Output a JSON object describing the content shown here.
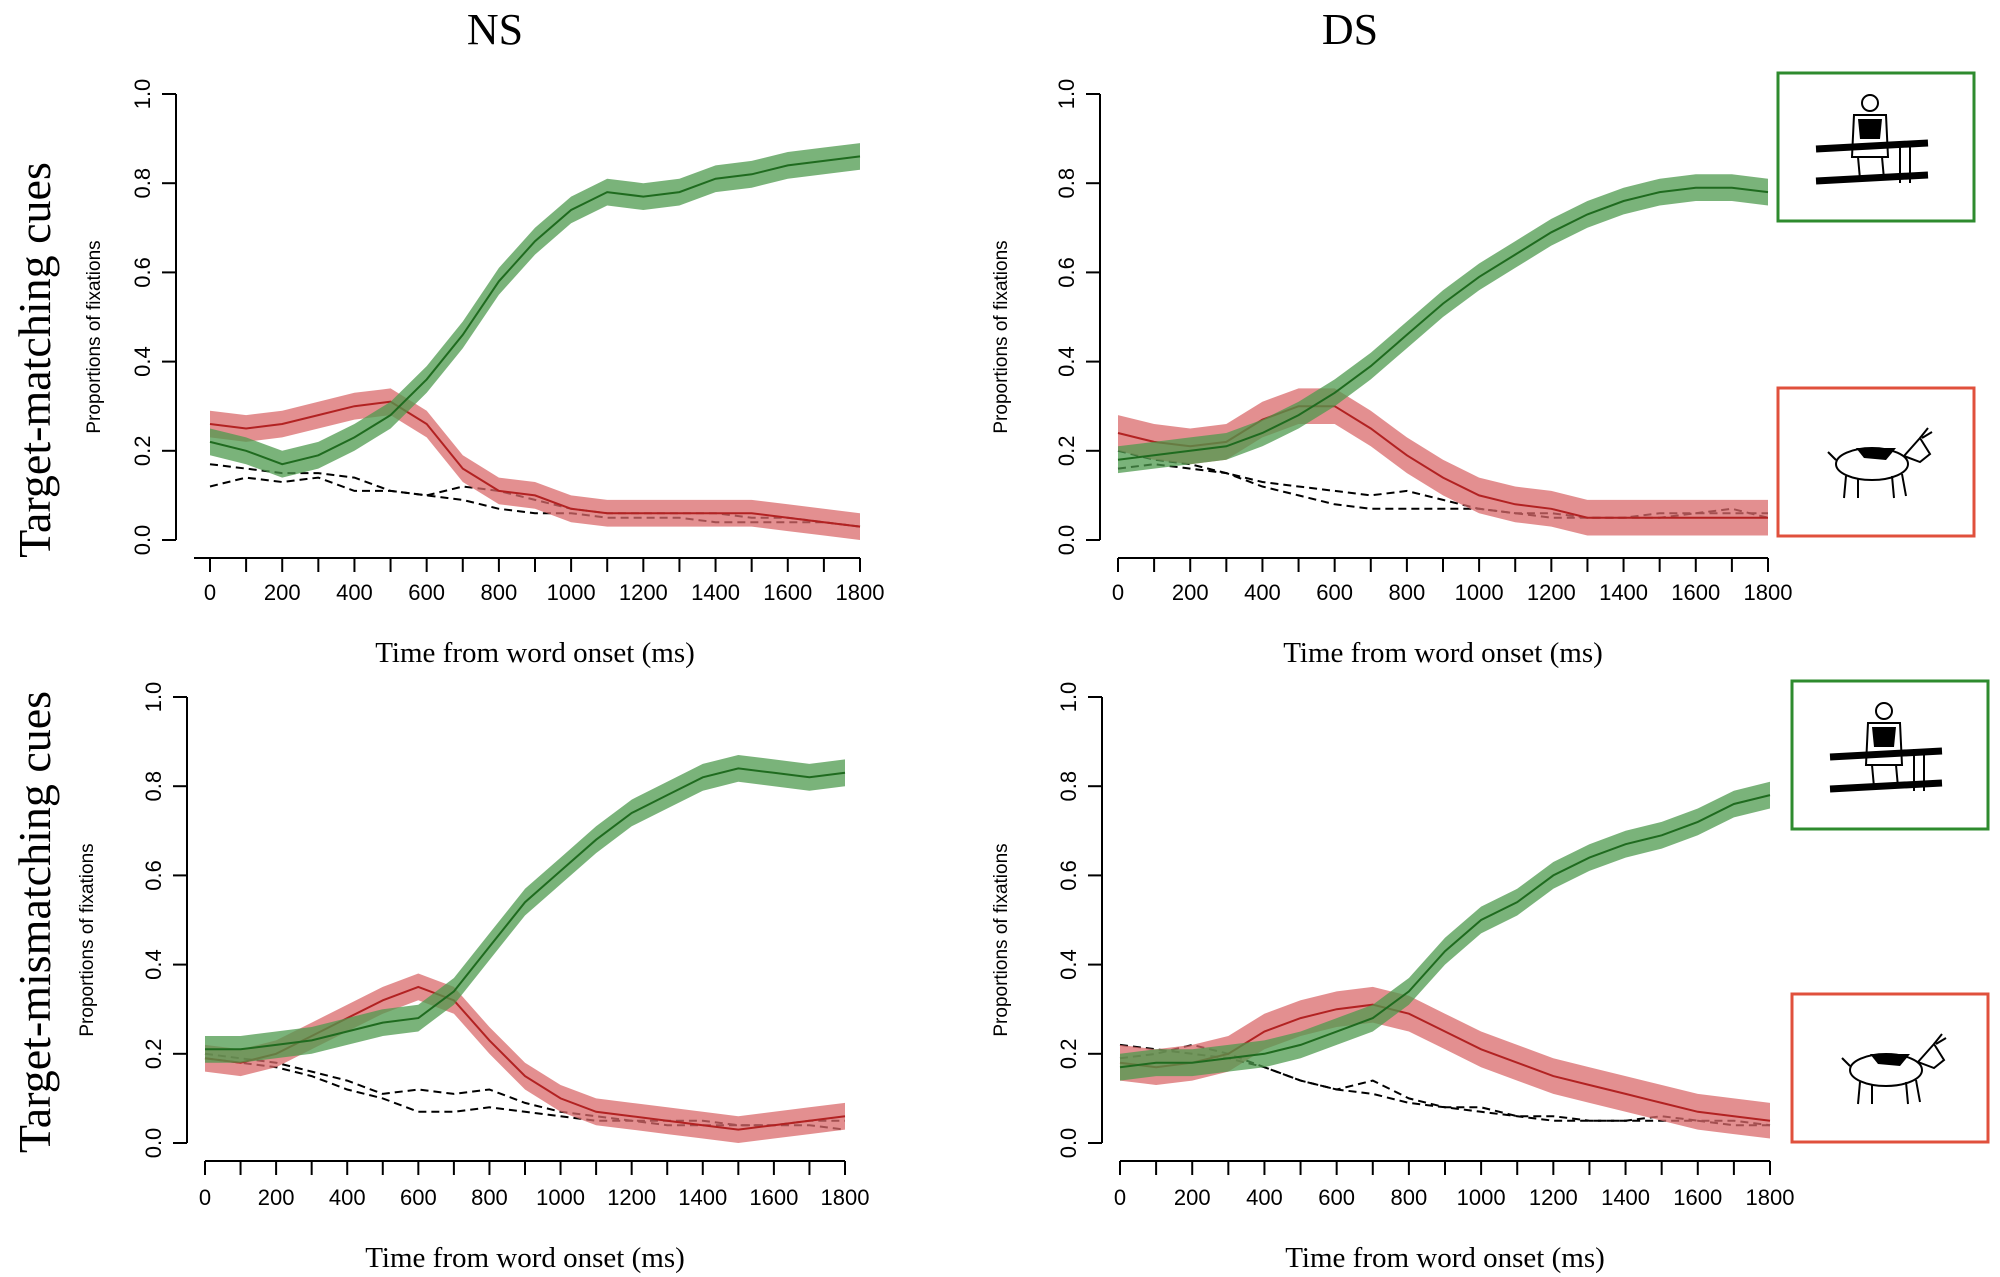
{
  "figure": {
    "col_titles": [
      "NS",
      "DS"
    ],
    "row_titles": [
      "Target-matching cues",
      "Target-mismatching cues"
    ]
  },
  "colors": {
    "target_line": "#1f6b1f",
    "target_band": "#4e9a4e",
    "competitor_line": "#b22222",
    "competitor_band": "#d9696b",
    "distractor_line": "#000000",
    "target_frame": "#2e8b2e",
    "competitor_frame": "#e0503c"
  },
  "legend_images": {
    "target": {
      "label": "target-picture",
      "icon": "woman-at-bars-icon"
    },
    "competitor": {
      "label": "competitor-picture",
      "icon": "goat-icon"
    }
  },
  "chart_data": [
    {
      "type": "line",
      "panel": "NS / Target-matching cues",
      "xlabel": "Time from word onset (ms)",
      "ylabel": "Proportions of fixations",
      "xlim": [
        0,
        1800
      ],
      "ylim": [
        0,
        1
      ],
      "x_ticks": [
        0,
        200,
        400,
        600,
        800,
        1000,
        1200,
        1400,
        1600,
        1800
      ],
      "y_ticks": [
        "0.0",
        "0.2",
        "0.4",
        "0.6",
        "0.8",
        "1.0"
      ],
      "x": [
        0,
        100,
        200,
        300,
        400,
        500,
        600,
        700,
        800,
        900,
        1000,
        1100,
        1200,
        1300,
        1400,
        1500,
        1600,
        1700,
        1800
      ],
      "series": [
        {
          "name": "target",
          "style": "band",
          "ci": 0.03,
          "values": [
            0.22,
            0.2,
            0.17,
            0.19,
            0.23,
            0.28,
            0.36,
            0.46,
            0.58,
            0.67,
            0.74,
            0.78,
            0.77,
            0.78,
            0.81,
            0.82,
            0.84,
            0.85,
            0.86
          ]
        },
        {
          "name": "competitor",
          "style": "band",
          "ci": 0.03,
          "values": [
            0.26,
            0.25,
            0.26,
            0.28,
            0.3,
            0.31,
            0.26,
            0.16,
            0.11,
            0.1,
            0.07,
            0.06,
            0.06,
            0.06,
            0.06,
            0.06,
            0.05,
            0.04,
            0.03
          ]
        },
        {
          "name": "distractor-1",
          "style": "dashed",
          "values": [
            0.17,
            0.16,
            0.15,
            0.15,
            0.14,
            0.11,
            0.1,
            0.09,
            0.07,
            0.06,
            0.06,
            0.05,
            0.05,
            0.05,
            0.04,
            0.04,
            0.04,
            0.04,
            0.03
          ]
        },
        {
          "name": "distractor-2",
          "style": "dashed",
          "values": [
            0.12,
            0.14,
            0.13,
            0.14,
            0.11,
            0.11,
            0.1,
            0.12,
            0.11,
            0.09,
            0.07,
            0.06,
            0.06,
            0.06,
            0.06,
            0.05,
            0.05,
            0.04,
            0.03
          ]
        }
      ]
    },
    {
      "type": "line",
      "panel": "DS / Target-matching cues",
      "xlabel": "Time from word onset (ms)",
      "ylabel": "Proportions of fixations",
      "xlim": [
        0,
        1800
      ],
      "ylim": [
        0,
        1
      ],
      "x_ticks": [
        0,
        200,
        400,
        600,
        800,
        1000,
        1200,
        1400,
        1600,
        1800
      ],
      "y_ticks": [
        "0.0",
        "0.2",
        "0.4",
        "0.6",
        "0.8",
        "1.0"
      ],
      "x": [
        0,
        100,
        200,
        300,
        400,
        500,
        600,
        700,
        800,
        900,
        1000,
        1100,
        1200,
        1300,
        1400,
        1500,
        1600,
        1700,
        1800
      ],
      "series": [
        {
          "name": "target",
          "style": "band",
          "ci": 0.03,
          "values": [
            0.18,
            0.19,
            0.2,
            0.21,
            0.24,
            0.28,
            0.33,
            0.39,
            0.46,
            0.53,
            0.59,
            0.64,
            0.69,
            0.73,
            0.76,
            0.78,
            0.79,
            0.79,
            0.78
          ]
        },
        {
          "name": "competitor",
          "style": "band",
          "ci": 0.04,
          "values": [
            0.24,
            0.22,
            0.21,
            0.22,
            0.27,
            0.3,
            0.3,
            0.25,
            0.19,
            0.14,
            0.1,
            0.08,
            0.07,
            0.05,
            0.05,
            0.05,
            0.05,
            0.05,
            0.05
          ]
        },
        {
          "name": "distractor-1",
          "style": "dashed",
          "values": [
            0.16,
            0.17,
            0.16,
            0.15,
            0.12,
            0.1,
            0.08,
            0.07,
            0.07,
            0.07,
            0.07,
            0.06,
            0.05,
            0.05,
            0.05,
            0.05,
            0.06,
            0.06,
            0.06
          ]
        },
        {
          "name": "distractor-2",
          "style": "dashed",
          "values": [
            0.2,
            0.18,
            0.17,
            0.15,
            0.13,
            0.12,
            0.11,
            0.1,
            0.11,
            0.09,
            0.07,
            0.06,
            0.06,
            0.05,
            0.05,
            0.06,
            0.06,
            0.07,
            0.05
          ]
        }
      ]
    },
    {
      "type": "line",
      "panel": "NS / Target-mismatching cues",
      "xlabel": "Time from word onset (ms)",
      "ylabel": "Proportions of fixations",
      "xlim": [
        0,
        1800
      ],
      "ylim": [
        0,
        1
      ],
      "x_ticks": [
        0,
        200,
        400,
        600,
        800,
        1000,
        1200,
        1400,
        1600,
        1800
      ],
      "y_ticks": [
        "0.0",
        "0.2",
        "0.4",
        "0.6",
        "0.8",
        "1.0"
      ],
      "x": [
        0,
        100,
        200,
        300,
        400,
        500,
        600,
        700,
        800,
        900,
        1000,
        1100,
        1200,
        1300,
        1400,
        1500,
        1600,
        1700,
        1800
      ],
      "series": [
        {
          "name": "target",
          "style": "band",
          "ci": 0.03,
          "values": [
            0.21,
            0.21,
            0.22,
            0.23,
            0.25,
            0.27,
            0.28,
            0.34,
            0.44,
            0.54,
            0.61,
            0.68,
            0.74,
            0.78,
            0.82,
            0.84,
            0.83,
            0.82,
            0.83
          ]
        },
        {
          "name": "competitor",
          "style": "band",
          "ci": 0.03,
          "values": [
            0.19,
            0.18,
            0.2,
            0.24,
            0.28,
            0.32,
            0.35,
            0.32,
            0.23,
            0.15,
            0.1,
            0.07,
            0.06,
            0.05,
            0.04,
            0.03,
            0.04,
            0.05,
            0.06
          ]
        },
        {
          "name": "distractor-1",
          "style": "dashed",
          "values": [
            0.19,
            0.18,
            0.17,
            0.15,
            0.12,
            0.1,
            0.07,
            0.07,
            0.08,
            0.07,
            0.06,
            0.05,
            0.05,
            0.04,
            0.04,
            0.04,
            0.04,
            0.04,
            0.03
          ]
        },
        {
          "name": "distractor-2",
          "style": "dashed",
          "values": [
            0.2,
            0.19,
            0.18,
            0.16,
            0.14,
            0.11,
            0.12,
            0.11,
            0.12,
            0.09,
            0.07,
            0.06,
            0.05,
            0.05,
            0.05,
            0.04,
            0.04,
            0.05,
            0.05
          ]
        }
      ]
    },
    {
      "type": "line",
      "panel": "DS / Target-mismatching cues",
      "xlabel": "Time from word onset (ms)",
      "ylabel": "Proportions of fixations",
      "xlim": [
        0,
        1800
      ],
      "ylim": [
        0,
        1
      ],
      "x_ticks": [
        0,
        200,
        400,
        600,
        800,
        1000,
        1200,
        1400,
        1600,
        1800
      ],
      "y_ticks": [
        "0.0",
        "0.2",
        "0.4",
        "0.6",
        "0.8",
        "1.0"
      ],
      "x": [
        0,
        100,
        200,
        300,
        400,
        500,
        600,
        700,
        800,
        900,
        1000,
        1100,
        1200,
        1300,
        1400,
        1500,
        1600,
        1700,
        1800
      ],
      "series": [
        {
          "name": "target",
          "style": "band",
          "ci": 0.03,
          "values": [
            0.17,
            0.18,
            0.18,
            0.19,
            0.2,
            0.22,
            0.25,
            0.28,
            0.34,
            0.43,
            0.5,
            0.54,
            0.6,
            0.64,
            0.67,
            0.69,
            0.72,
            0.76,
            0.78
          ]
        },
        {
          "name": "competitor",
          "style": "band",
          "ci": 0.04,
          "values": [
            0.18,
            0.17,
            0.18,
            0.2,
            0.25,
            0.28,
            0.3,
            0.31,
            0.29,
            0.25,
            0.21,
            0.18,
            0.15,
            0.13,
            0.11,
            0.09,
            0.07,
            0.06,
            0.05
          ]
        },
        {
          "name": "distractor-1",
          "style": "dashed",
          "values": [
            0.22,
            0.21,
            0.2,
            0.19,
            0.17,
            0.14,
            0.12,
            0.11,
            0.09,
            0.08,
            0.07,
            0.06,
            0.05,
            0.05,
            0.05,
            0.05,
            0.05,
            0.04,
            0.04
          ]
        },
        {
          "name": "distractor-2",
          "style": "dashed",
          "values": [
            0.19,
            0.2,
            0.22,
            0.2,
            0.17,
            0.14,
            0.12,
            0.14,
            0.1,
            0.08,
            0.08,
            0.06,
            0.06,
            0.05,
            0.05,
            0.06,
            0.05,
            0.05,
            0.04
          ]
        }
      ]
    }
  ]
}
